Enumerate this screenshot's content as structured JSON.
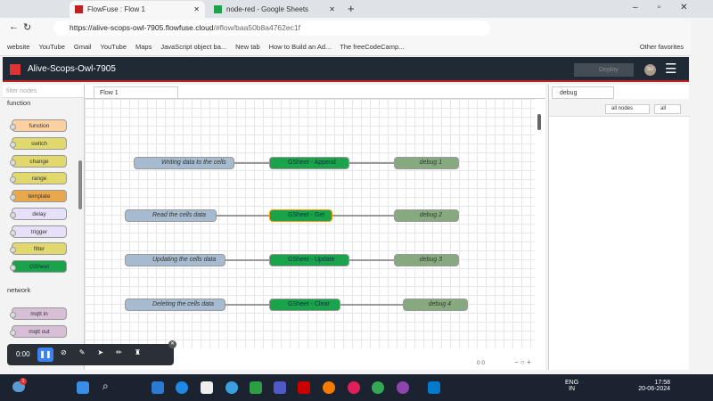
{
  "browser": {
    "tabs": [
      {
        "title": "FlowFuse : Flow 1",
        "active": true
      },
      {
        "title": "node-red - Google Sheets",
        "active": false
      }
    ],
    "url_host": "https://alive-scops-owl-7905.flowfuse.cloud",
    "url_path": "/#flow/baa50b8a4762ec1f",
    "bookmarks": [
      "website",
      "YouTube",
      "Gmail",
      "YouTube",
      "Maps",
      "JavaScript object ba...",
      "New tab",
      "How to Build an Ad...",
      "The freeCodeCamp..."
    ],
    "other_favorites": "Other favorites"
  },
  "app": {
    "title": "Alive-Scops-Owl-7905",
    "deploy_label": "Deploy",
    "avatar": "SU",
    "accent": "#c02020"
  },
  "palette": {
    "filter_placeholder": "filter nodes",
    "categories": [
      {
        "name": "function",
        "nodes": [
          "function",
          "switch",
          "change",
          "range",
          "template",
          "delay",
          "trigger",
          "filter",
          "GSheet"
        ]
      },
      {
        "name": "network",
        "nodes": [
          "mqtt in",
          "mqtt out"
        ]
      }
    ]
  },
  "workspace": {
    "tab": "Flow 1",
    "flows": [
      {
        "inject": "Writing data to the cells",
        "gsheet": "GSheet - Append",
        "debug": "debug 1"
      },
      {
        "inject": "Read the cells data",
        "gsheet": "GSheet - Get",
        "debug": "debug 2"
      },
      {
        "inject": "Updating the cells data",
        "gsheet": "GSheet - Update",
        "debug": "debug 3"
      },
      {
        "inject": "Deleting the cells data",
        "gsheet": "GSheet - Clear",
        "debug": "debug 4"
      }
    ],
    "status": "0 0"
  },
  "sidebar": {
    "tab": "debug",
    "filter": "all nodes",
    "clear": "all"
  },
  "recorder": {
    "time": "0:00"
  },
  "taskbar": {
    "lang": "ENG",
    "region": "IN",
    "time": "17:58",
    "date": "20-06-2024",
    "badge": "1"
  }
}
